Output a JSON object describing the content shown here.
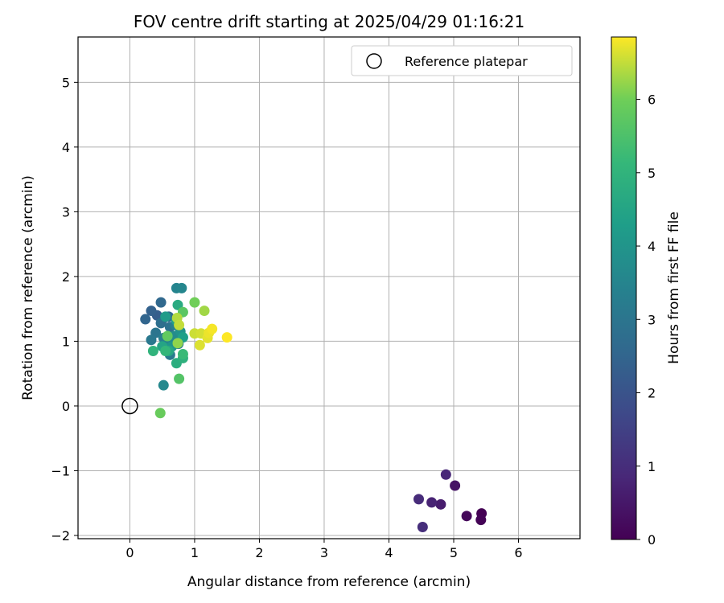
{
  "chart_data": {
    "type": "scatter",
    "title": "FOV centre drift starting at 2025/04/29 01:16:21",
    "xlabel": "Angular distance from reference (arcmin)",
    "ylabel": "Rotation from reference (arcmin)",
    "xlim": [
      -0.8,
      6.95
    ],
    "ylim": [
      -2.05,
      5.7
    ],
    "xticks": [
      0,
      1,
      2,
      3,
      4,
      5,
      6
    ],
    "yticks": [
      -2,
      -1,
      0,
      1,
      2,
      3,
      4,
      5
    ],
    "grid": true,
    "legend": {
      "position": "upper-right",
      "label": "Reference platepar"
    },
    "reference_point": {
      "x": 0,
      "y": 0
    },
    "colorbar": {
      "label": "Hours from first FF file",
      "colormap": "viridis",
      "range": [
        0,
        6.85
      ],
      "ticks": [
        0,
        1,
        2,
        3,
        4,
        5,
        6
      ]
    },
    "points": [
      {
        "x": 5.43,
        "y": -1.66,
        "hours": 0.0
      },
      {
        "x": 5.42,
        "y": -1.76,
        "hours": 0.05
      },
      {
        "x": 5.2,
        "y": -1.7,
        "hours": 0.15
      },
      {
        "x": 5.02,
        "y": -1.23,
        "hours": 0.4
      },
      {
        "x": 4.8,
        "y": -1.52,
        "hours": 0.6
      },
      {
        "x": 4.66,
        "y": -1.49,
        "hours": 0.75
      },
      {
        "x": 4.88,
        "y": -1.06,
        "hours": 0.85
      },
      {
        "x": 4.46,
        "y": -1.44,
        "hours": 0.95
      },
      {
        "x": 4.52,
        "y": -1.87,
        "hours": 1.0
      },
      {
        "x": 0.5,
        "y": 1.33,
        "hours": 2.2
      },
      {
        "x": 0.42,
        "y": 1.4,
        "hours": 2.3
      },
      {
        "x": 0.33,
        "y": 1.47,
        "hours": 2.4
      },
      {
        "x": 0.24,
        "y": 1.34,
        "hours": 2.5
      },
      {
        "x": 0.48,
        "y": 1.6,
        "hours": 2.6
      },
      {
        "x": 0.6,
        "y": 1.38,
        "hours": 2.7
      },
      {
        "x": 0.48,
        "y": 1.28,
        "hours": 2.8
      },
      {
        "x": 0.62,
        "y": 1.22,
        "hours": 2.9
      },
      {
        "x": 0.4,
        "y": 1.13,
        "hours": 3.0
      },
      {
        "x": 0.33,
        "y": 1.02,
        "hours": 3.1
      },
      {
        "x": 0.75,
        "y": 0.96,
        "hours": 3.15
      },
      {
        "x": 0.62,
        "y": 0.79,
        "hours": 3.2
      },
      {
        "x": 0.52,
        "y": 1.05,
        "hours": 3.3
      },
      {
        "x": 0.7,
        "y": 1.25,
        "hours": 3.35
      },
      {
        "x": 0.58,
        "y": 1.0,
        "hours": 3.45
      },
      {
        "x": 0.72,
        "y": 1.82,
        "hours": 3.5
      },
      {
        "x": 0.8,
        "y": 1.82,
        "hours": 3.55
      },
      {
        "x": 0.52,
        "y": 0.32,
        "hours": 3.6
      },
      {
        "x": 0.68,
        "y": 1.08,
        "hours": 3.7
      },
      {
        "x": 0.55,
        "y": 0.9,
        "hours": 3.8
      },
      {
        "x": 0.78,
        "y": 1.15,
        "hours": 3.9
      },
      {
        "x": 0.65,
        "y": 0.92,
        "hours": 4.0
      },
      {
        "x": 0.55,
        "y": 1.38,
        "hours": 4.2
      },
      {
        "x": 0.82,
        "y": 1.06,
        "hours": 4.3
      },
      {
        "x": 0.72,
        "y": 1.32,
        "hours": 4.4
      },
      {
        "x": 0.5,
        "y": 0.92,
        "hours": 4.5
      },
      {
        "x": 0.6,
        "y": 0.85,
        "hours": 4.6
      },
      {
        "x": 0.74,
        "y": 1.56,
        "hours": 4.7
      },
      {
        "x": 0.72,
        "y": 0.66,
        "hours": 4.8
      },
      {
        "x": 0.82,
        "y": 0.74,
        "hours": 4.9
      },
      {
        "x": 0.36,
        "y": 0.85,
        "hours": 5.0
      },
      {
        "x": 0.55,
        "y": 0.85,
        "hours": 5.1
      },
      {
        "x": 0.82,
        "y": 0.8,
        "hours": 5.2
      },
      {
        "x": 0.76,
        "y": 0.42,
        "hours": 5.6
      },
      {
        "x": 0.82,
        "y": 1.45,
        "hours": 5.7
      },
      {
        "x": 0.58,
        "y": 1.08,
        "hours": 5.8
      },
      {
        "x": 0.47,
        "y": -0.11,
        "hours": 5.9
      },
      {
        "x": 1.0,
        "y": 1.6,
        "hours": 6.0
      },
      {
        "x": 0.74,
        "y": 0.97,
        "hours": 6.2
      },
      {
        "x": 1.15,
        "y": 1.47,
        "hours": 6.3
      },
      {
        "x": 0.73,
        "y": 1.36,
        "hours": 6.4
      },
      {
        "x": 0.76,
        "y": 1.25,
        "hours": 6.5
      },
      {
        "x": 1.0,
        "y": 1.12,
        "hours": 6.55
      },
      {
        "x": 1.1,
        "y": 1.12,
        "hours": 6.6
      },
      {
        "x": 1.08,
        "y": 0.94,
        "hours": 6.65
      },
      {
        "x": 1.2,
        "y": 1.05,
        "hours": 6.7
      },
      {
        "x": 1.22,
        "y": 1.13,
        "hours": 6.75
      },
      {
        "x": 1.27,
        "y": 1.19,
        "hours": 6.8
      },
      {
        "x": 1.5,
        "y": 1.06,
        "hours": 6.85
      }
    ]
  }
}
